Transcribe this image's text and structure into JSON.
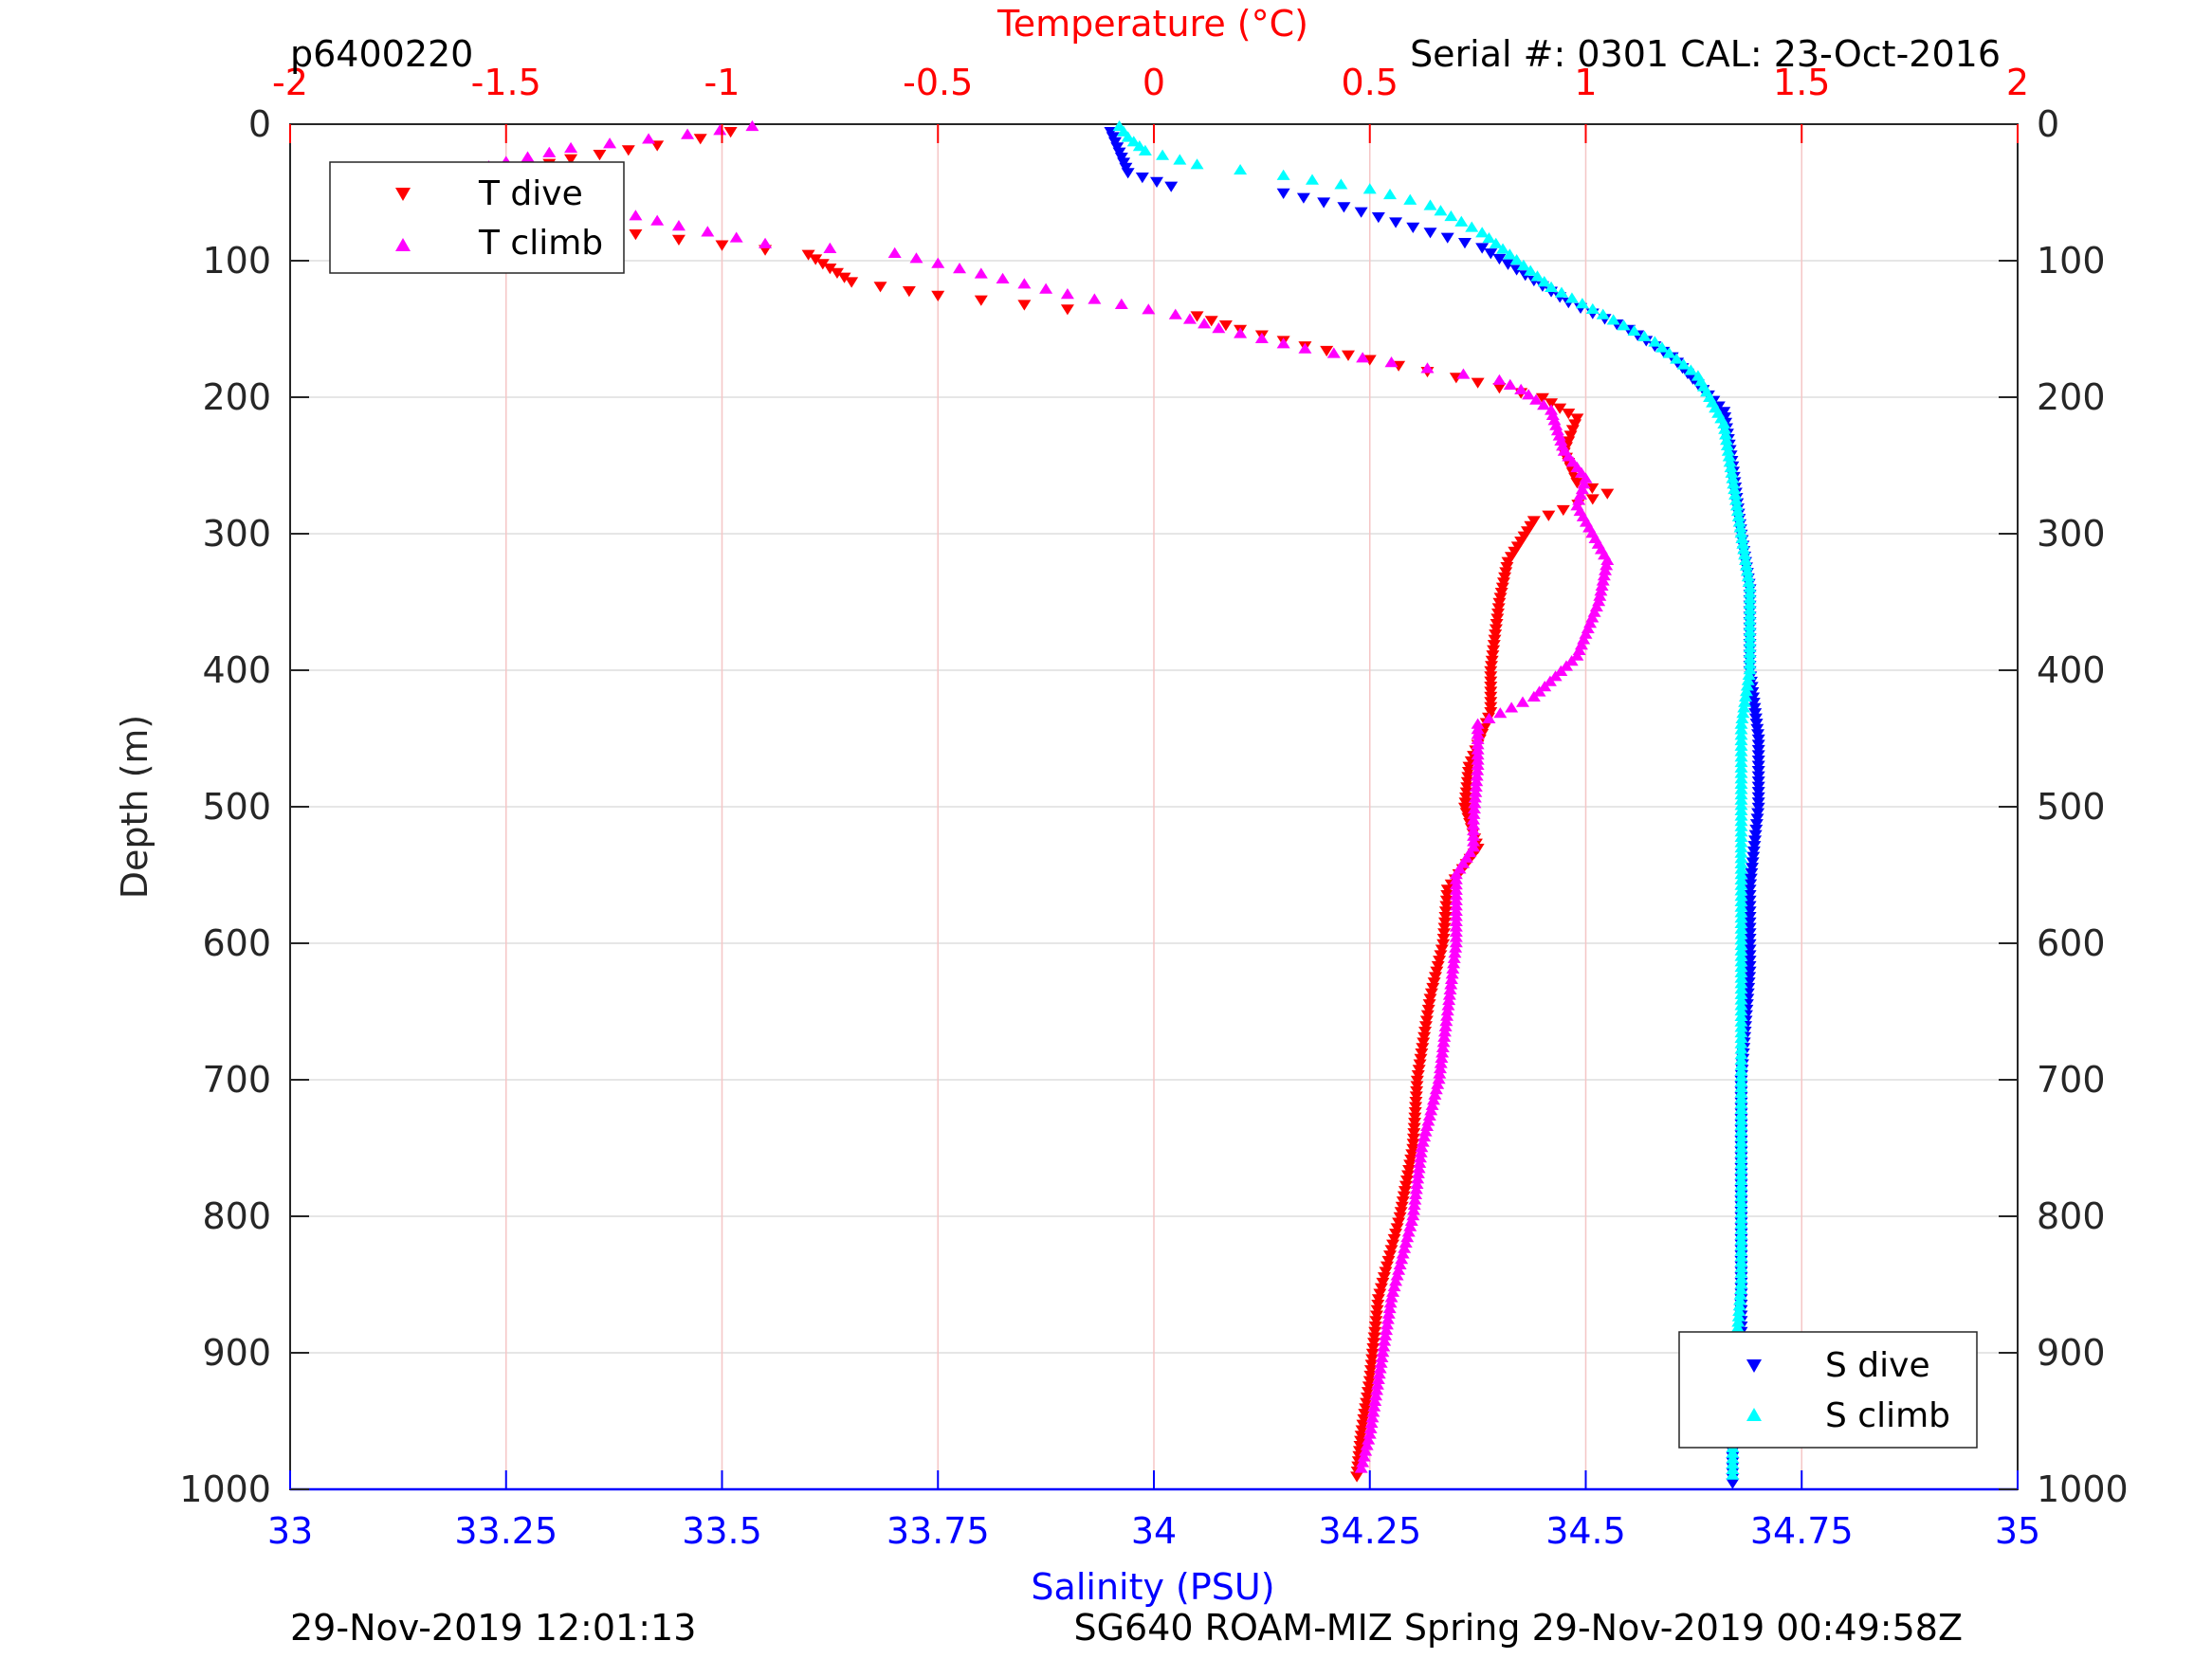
{
  "header": {
    "left_label": "p6400220",
    "right_label": "Serial #: 0301  CAL: 23-Oct-2016"
  },
  "footer": {
    "left_text": "29-Nov-2019 12:01:13",
    "right_text": "SG640 ROAM-MIZ Spring 29-Nov-2019 00:49:58Z"
  },
  "colors": {
    "temperature_axis": "#ff0000",
    "salinity_axis": "#0000ff",
    "t_dive": "#ff0000",
    "t_climb": "#ff00ff",
    "s_dive": "#0000ff",
    "s_climb": "#00ffff",
    "grid": "#e6e6e6",
    "temp_grid": "#f5c6c6"
  },
  "chart_data": {
    "type": "scatter",
    "title": "",
    "depth_axis": {
      "label": "Depth (m)",
      "ylim": [
        0,
        1000
      ],
      "reversed": true,
      "ticks": [
        0,
        100,
        200,
        300,
        400,
        500,
        600,
        700,
        800,
        900,
        1000
      ],
      "tick_labels": [
        "0",
        "100",
        "200",
        "300",
        "400",
        "500",
        "600",
        "700",
        "800",
        "900",
        "1000"
      ],
      "grid": true
    },
    "temperature_axis": {
      "label": "Temperature (°C)",
      "position": "top",
      "xlim": [
        -2,
        2
      ],
      "ticks": [
        -2,
        -1.5,
        -1,
        -0.5,
        0,
        0.5,
        1,
        1.5,
        2
      ],
      "tick_labels": [
        "-2",
        "-1.5",
        "-1",
        "-0.5",
        "0",
        "0.5",
        "1",
        "1.5",
        "2"
      ],
      "grid": true
    },
    "salinity_axis": {
      "label": "Salinity (PSU)",
      "position": "bottom",
      "xlim": [
        33,
        35
      ],
      "ticks": [
        33,
        33.25,
        33.5,
        33.75,
        34,
        34.25,
        34.5,
        34.75,
        35
      ],
      "tick_labels": [
        "33",
        "33.25",
        "33.5",
        "33.75",
        "34",
        "34.25",
        "34.5",
        "34.75",
        "35"
      ]
    },
    "legends": [
      {
        "placement": "top-left",
        "entries": [
          "T dive",
          "T climb"
        ]
      },
      {
        "placement": "bottom-right",
        "entries": [
          "S dive",
          "S climb"
        ]
      }
    ],
    "series": [
      {
        "name": "T dive",
        "axis": "temperature",
        "marker": "triangle-down",
        "color": "#ff0000",
        "points": [
          [
            -0.98,
            5
          ],
          [
            -1.05,
            10
          ],
          [
            -1.15,
            15
          ],
          [
            -1.35,
            25
          ],
          [
            -1.5,
            35
          ],
          [
            -1.45,
            55
          ],
          [
            -1.4,
            70
          ],
          [
            -1.2,
            80
          ],
          [
            -1.0,
            88
          ],
          [
            -0.8,
            95
          ],
          [
            -0.75,
            105
          ],
          [
            -0.7,
            115
          ],
          [
            -0.5,
            125
          ],
          [
            -0.2,
            135
          ],
          [
            0.1,
            140
          ],
          [
            0.2,
            150
          ],
          [
            0.35,
            162
          ],
          [
            0.5,
            172
          ],
          [
            0.7,
            185
          ],
          [
            0.9,
            200
          ],
          [
            0.98,
            215
          ],
          [
            0.95,
            240
          ],
          [
            0.98,
            262
          ],
          [
            1.05,
            270
          ],
          [
            0.88,
            290
          ],
          [
            0.82,
            320
          ],
          [
            0.8,
            350
          ],
          [
            0.78,
            400
          ],
          [
            0.78,
            430
          ],
          [
            0.73,
            470
          ],
          [
            0.72,
            500
          ],
          [
            0.75,
            530
          ],
          [
            0.68,
            560
          ],
          [
            0.67,
            600
          ],
          [
            0.64,
            640
          ],
          [
            0.61,
            700
          ],
          [
            0.6,
            750
          ],
          [
            0.57,
            800
          ],
          [
            0.52,
            860
          ],
          [
            0.5,
            920
          ],
          [
            0.48,
            960
          ],
          [
            0.47,
            990
          ]
        ]
      },
      {
        "name": "T climb",
        "axis": "temperature",
        "marker": "triangle-up",
        "color": "#ff00ff",
        "points": [
          [
            -0.93,
            2
          ],
          [
            -1.08,
            8
          ],
          [
            -1.35,
            18
          ],
          [
            -1.5,
            28
          ],
          [
            -1.62,
            38
          ],
          [
            -1.3,
            60
          ],
          [
            -1.1,
            75
          ],
          [
            -0.9,
            88
          ],
          [
            -0.6,
            95
          ],
          [
            -0.4,
            110
          ],
          [
            -0.2,
            125
          ],
          [
            0.05,
            140
          ],
          [
            0.15,
            150
          ],
          [
            0.35,
            165
          ],
          [
            0.55,
            175
          ],
          [
            0.8,
            188
          ],
          [
            0.85,
            195
          ],
          [
            0.92,
            210
          ],
          [
            0.95,
            240
          ],
          [
            1.0,
            260
          ],
          [
            0.98,
            280
          ],
          [
            1.05,
            320
          ],
          [
            1.03,
            350
          ],
          [
            0.98,
            390
          ],
          [
            0.88,
            420
          ],
          [
            0.75,
            440
          ],
          [
            0.75,
            470
          ],
          [
            0.74,
            510
          ],
          [
            0.74,
            530
          ],
          [
            0.7,
            550
          ],
          [
            0.7,
            600
          ],
          [
            0.68,
            650
          ],
          [
            0.66,
            700
          ],
          [
            0.62,
            750
          ],
          [
            0.6,
            800
          ],
          [
            0.55,
            860
          ],
          [
            0.52,
            920
          ],
          [
            0.5,
            960
          ],
          [
            0.48,
            985
          ]
        ]
      },
      {
        "name": "S dive",
        "axis": "salinity",
        "marker": "triangle-down",
        "color": "#0000ff",
        "points": [
          [
            33.95,
            5
          ],
          [
            33.96,
            20
          ],
          [
            33.97,
            35
          ],
          [
            34.02,
            45
          ],
          [
            34.15,
            50
          ],
          [
            34.22,
            60
          ],
          [
            34.3,
            75
          ],
          [
            34.38,
            90
          ],
          [
            34.43,
            110
          ],
          [
            34.48,
            130
          ],
          [
            34.55,
            150
          ],
          [
            34.6,
            170
          ],
          [
            34.63,
            190
          ],
          [
            34.66,
            210
          ],
          [
            34.67,
            250
          ],
          [
            34.68,
            300
          ],
          [
            34.69,
            340
          ],
          [
            34.69,
            400
          ],
          [
            34.7,
            450
          ],
          [
            34.7,
            500
          ],
          [
            34.69,
            560
          ],
          [
            34.69,
            620
          ],
          [
            34.68,
            700
          ],
          [
            34.68,
            800
          ],
          [
            34.68,
            900
          ],
          [
            34.67,
            960
          ],
          [
            34.67,
            995
          ]
        ]
      },
      {
        "name": "S climb",
        "axis": "salinity",
        "marker": "triangle-up",
        "color": "#00ffff",
        "points": [
          [
            33.96,
            2
          ],
          [
            33.97,
            10
          ],
          [
            33.99,
            20
          ],
          [
            34.05,
            30
          ],
          [
            34.15,
            38
          ],
          [
            34.25,
            48
          ],
          [
            34.32,
            60
          ],
          [
            34.38,
            80
          ],
          [
            34.42,
            100
          ],
          [
            34.46,
            120
          ],
          [
            34.52,
            140
          ],
          [
            34.58,
            160
          ],
          [
            34.63,
            185
          ],
          [
            34.66,
            220
          ],
          [
            34.67,
            260
          ],
          [
            34.68,
            300
          ],
          [
            34.69,
            340
          ],
          [
            34.69,
            400
          ],
          [
            34.68,
            440
          ],
          [
            34.68,
            480
          ],
          [
            34.68,
            550
          ],
          [
            34.68,
            650
          ],
          [
            34.68,
            750
          ],
          [
            34.68,
            850
          ],
          [
            34.67,
            930
          ],
          [
            34.67,
            990
          ]
        ]
      }
    ]
  }
}
